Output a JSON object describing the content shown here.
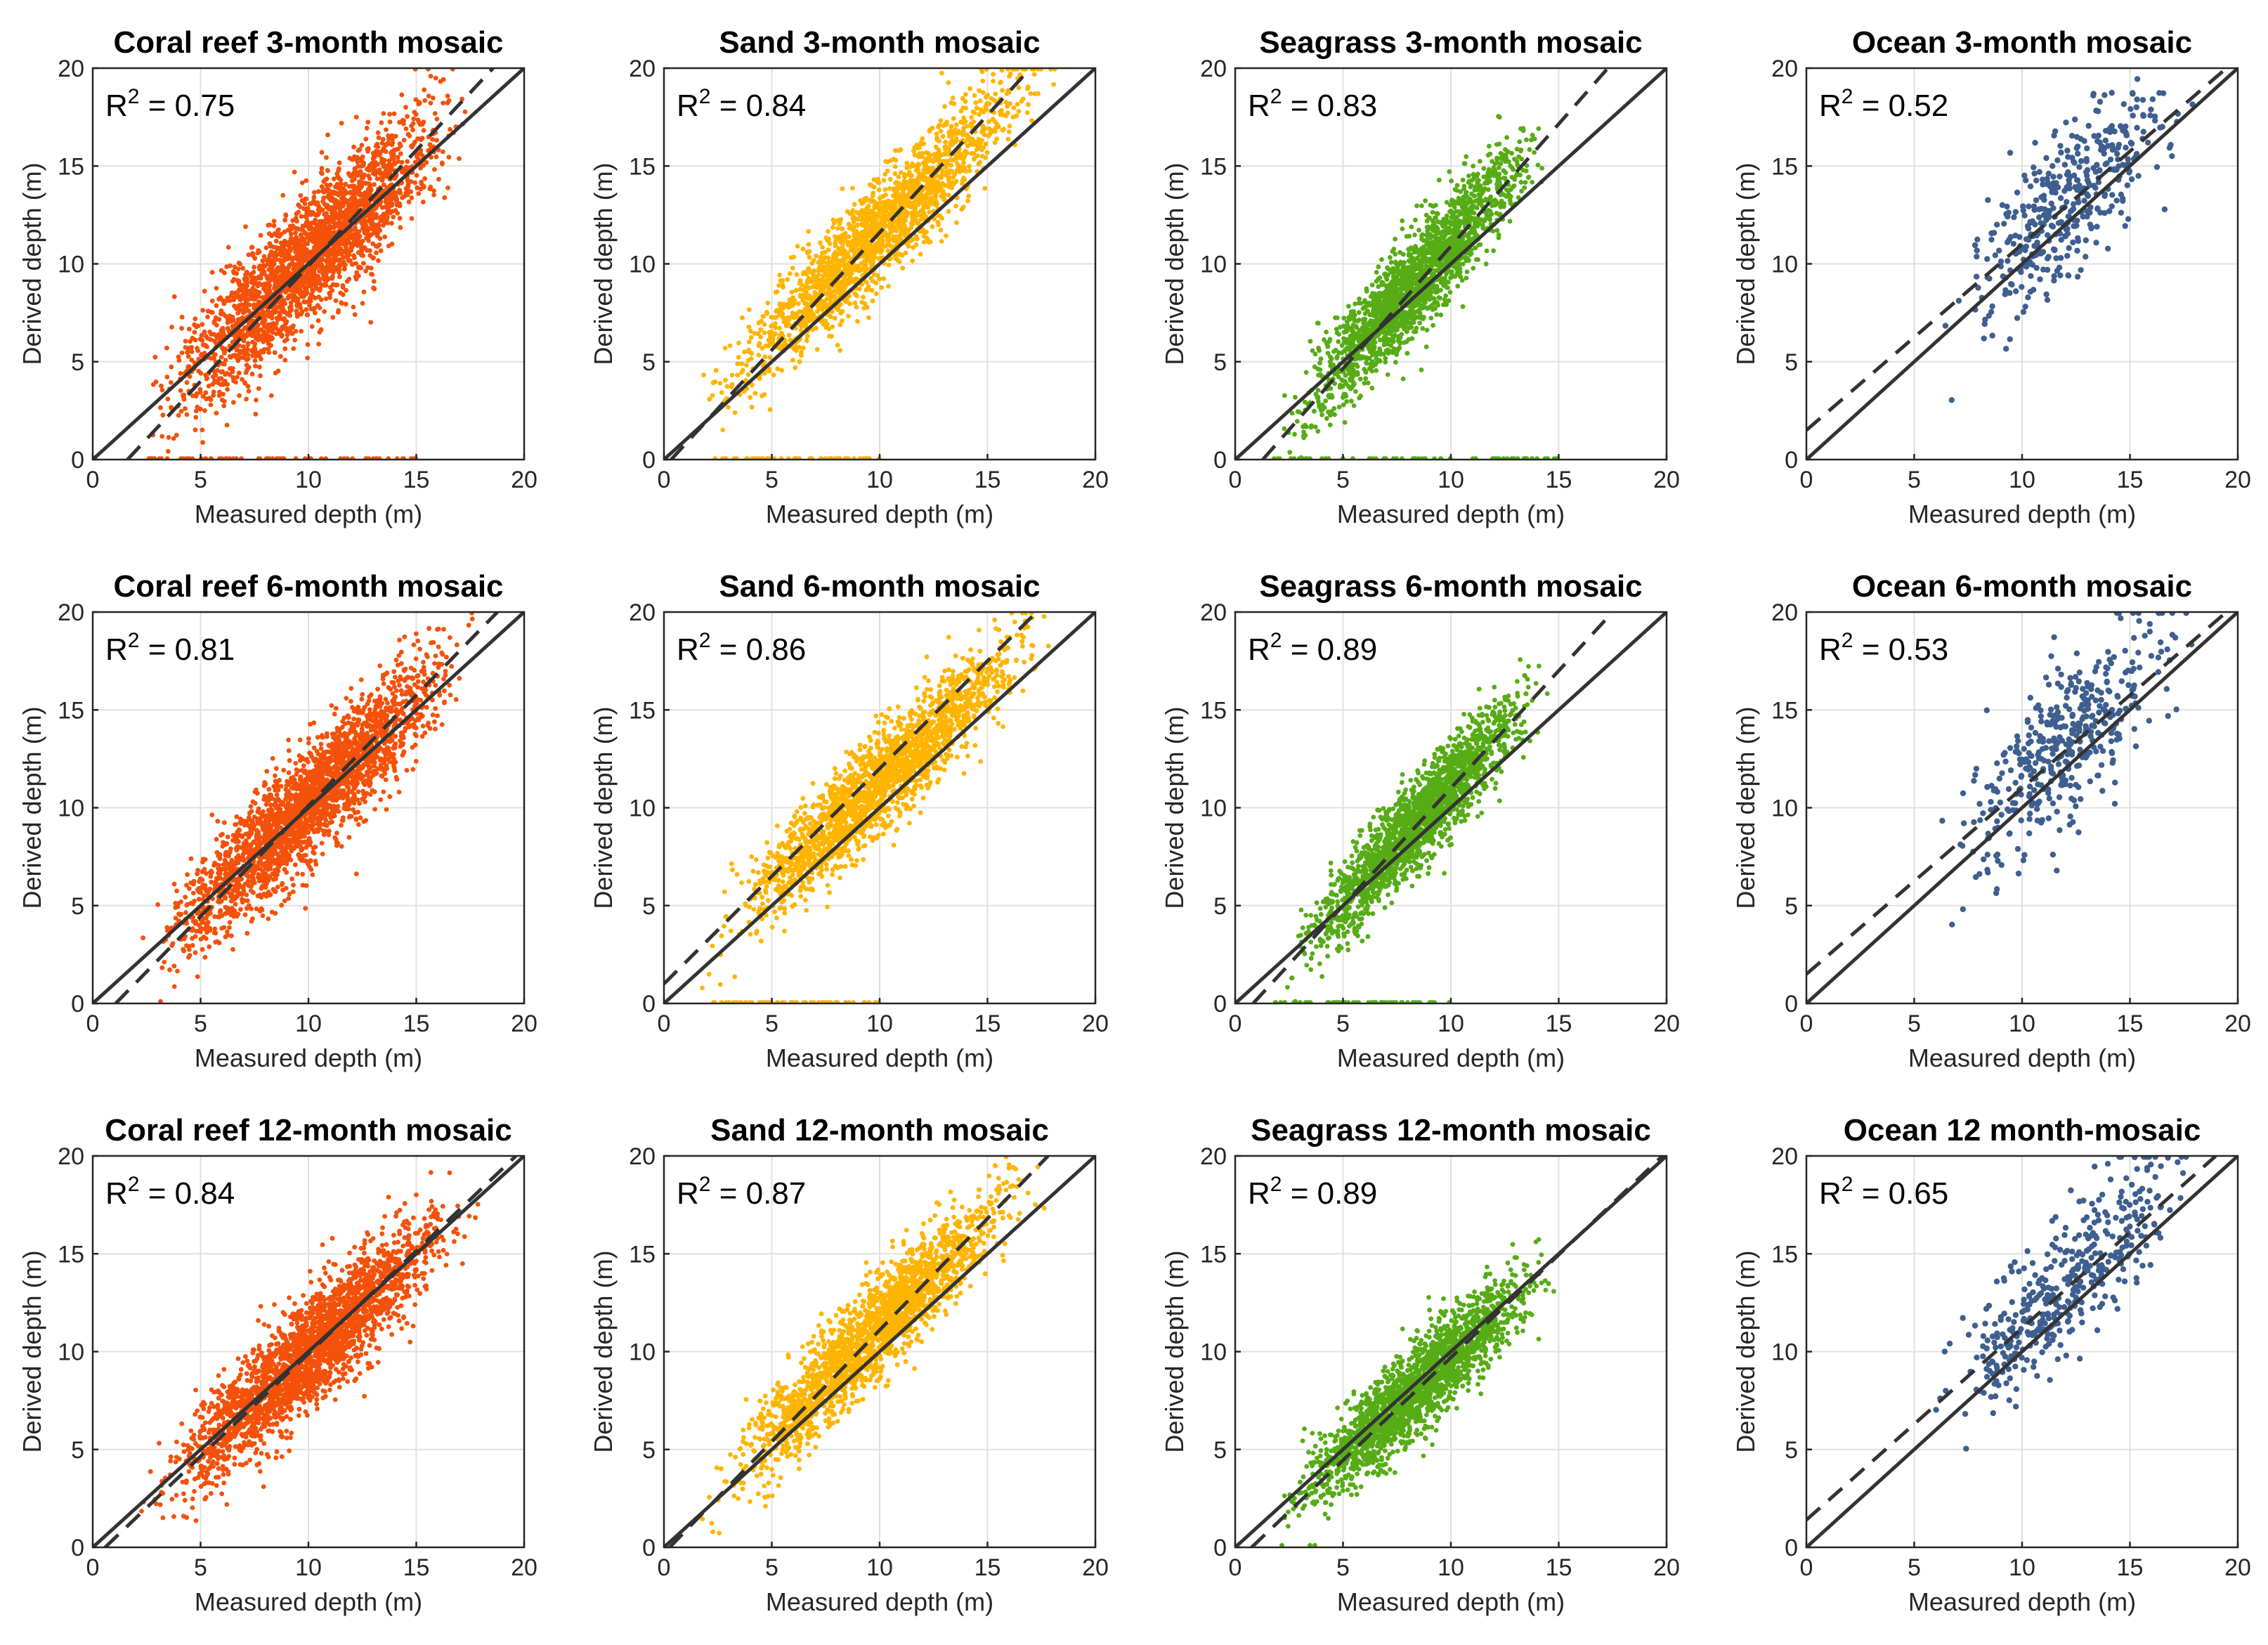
{
  "figure": {
    "xlabel": "Measured depth (m)",
    "ylabel": "Derived depth (m)"
  },
  "chart_data": [
    {
      "type": "scatter",
      "title": "Coral reef 3-month mosaic",
      "xlabel": "Measured depth (m)",
      "ylabel": "Derived depth (m)",
      "xlim": [
        0,
        20
      ],
      "ylim": [
        0,
        20
      ],
      "xticks": [
        0,
        5,
        10,
        15,
        20
      ],
      "yticks": [
        0,
        5,
        10,
        15,
        20
      ],
      "grid": true,
      "r2_prefix": "R",
      "r2_exp": "2",
      "r2_value": "0.75",
      "color": "#f4510b",
      "one_to_one": true,
      "fit_line": {
        "slope": 1.18,
        "intercept": -1.9
      },
      "cloud": {
        "n": 2600,
        "xmin": 2,
        "xmax": 18,
        "a": 1.05,
        "b": -0.3,
        "spread": 1.6,
        "zero_band": [
          2.5,
          15
        ]
      }
    },
    {
      "type": "scatter",
      "title": "Sand 3-month mosaic",
      "xlabel": "Measured depth (m)",
      "ylabel": "Derived depth (m)",
      "xlim": [
        0,
        20
      ],
      "ylim": [
        0,
        20
      ],
      "xticks": [
        0,
        5,
        10,
        15,
        20
      ],
      "yticks": [
        0,
        5,
        10,
        15,
        20
      ],
      "grid": true,
      "r2_prefix": "R",
      "r2_exp": "2",
      "r2_value": "0.84",
      "color": "#ffb400",
      "one_to_one": true,
      "fit_line": {
        "slope": 1.2,
        "intercept": -0.4
      },
      "cloud": {
        "n": 2000,
        "xmin": 1.3,
        "xmax": 18.5,
        "a": 1.1,
        "b": 0.7,
        "spread": 1.3,
        "zero_band": [
          2,
          10
        ]
      }
    },
    {
      "type": "scatter",
      "title": "Seagrass 3-month mosaic",
      "xlabel": "Measured depth (m)",
      "ylabel": "Derived depth (m)",
      "xlim": [
        0,
        20
      ],
      "ylim": [
        0,
        20
      ],
      "xticks": [
        0,
        5,
        10,
        15,
        20
      ],
      "yticks": [
        0,
        5,
        10,
        15,
        20
      ],
      "grid": true,
      "r2_prefix": "R",
      "r2_exp": "2",
      "r2_value": "0.83",
      "color": "#57ac16",
      "one_to_one": true,
      "fit_line": {
        "slope": 1.25,
        "intercept": -1.6
      },
      "cloud": {
        "n": 2000,
        "xmin": 1.8,
        "xmax": 15,
        "a": 1.25,
        "b": -1.4,
        "spread": 1.3,
        "zero_band": [
          1.8,
          15
        ]
      }
    },
    {
      "type": "scatter",
      "title": "Ocean 3-month mosaic",
      "xlabel": "Measured depth (m)",
      "ylabel": "Derived depth (m)",
      "xlim": [
        0,
        20
      ],
      "ylim": [
        0,
        20
      ],
      "xticks": [
        0,
        5,
        10,
        15,
        20
      ],
      "yticks": [
        0,
        5,
        10,
        15,
        20
      ],
      "grid": true,
      "r2_prefix": "R",
      "r2_exp": "2",
      "r2_value": "0.52",
      "color": "#3e5f8f",
      "one_to_one": true,
      "fit_line": {
        "slope": 0.95,
        "intercept": 1.5
      },
      "cloud": {
        "n": 420,
        "xmin": 5.5,
        "xmax": 18.5,
        "a": 1.0,
        "b": 1.0,
        "spread": 1.9,
        "zero_band": null
      }
    },
    {
      "type": "scatter",
      "title": "Coral reef 6-month mosaic",
      "xlabel": "Measured depth (m)",
      "ylabel": "Derived depth (m)",
      "xlim": [
        0,
        20
      ],
      "ylim": [
        0,
        20
      ],
      "xticks": [
        0,
        5,
        10,
        15,
        20
      ],
      "yticks": [
        0,
        5,
        10,
        15,
        20
      ],
      "grid": true,
      "r2_prefix": "R",
      "r2_exp": "2",
      "r2_value": "0.81",
      "color": "#f4510b",
      "one_to_one": true,
      "fit_line": {
        "slope": 1.13,
        "intercept": -1.2
      },
      "cloud": {
        "n": 2600,
        "xmin": 2,
        "xmax": 18,
        "a": 1.05,
        "b": -0.3,
        "spread": 1.4,
        "zero_band": null
      }
    },
    {
      "type": "scatter",
      "title": "Sand 6-month mosaic",
      "xlabel": "Measured depth (m)",
      "ylabel": "Derived depth (m)",
      "xlim": [
        0,
        20
      ],
      "ylim": [
        0,
        20
      ],
      "xticks": [
        0,
        5,
        10,
        15,
        20
      ],
      "yticks": [
        0,
        5,
        10,
        15,
        20
      ],
      "grid": true,
      "r2_prefix": "R",
      "r2_exp": "2",
      "r2_value": "0.86",
      "color": "#ffb400",
      "one_to_one": true,
      "fit_line": {
        "slope": 1.1,
        "intercept": 1.0
      },
      "cloud": {
        "n": 2000,
        "xmin": 1.3,
        "xmax": 18.5,
        "a": 1.05,
        "b": 0.8,
        "spread": 1.2,
        "zero_band": [
          2,
          10
        ]
      }
    },
    {
      "type": "scatter",
      "title": "Seagrass 6-month mosaic",
      "xlabel": "Measured depth (m)",
      "ylabel": "Derived depth (m)",
      "xlim": [
        0,
        20
      ],
      "ylim": [
        0,
        20
      ],
      "xticks": [
        0,
        5,
        10,
        15,
        20
      ],
      "yticks": [
        0,
        5,
        10,
        15,
        20
      ],
      "grid": true,
      "r2_prefix": "R",
      "r2_exp": "2",
      "r2_value": "0.89",
      "color": "#57ac16",
      "one_to_one": true,
      "fit_line": {
        "slope": 1.2,
        "intercept": -1.0
      },
      "cloud": {
        "n": 2000,
        "xmin": 1.8,
        "xmax": 15,
        "a": 1.2,
        "b": -0.9,
        "spread": 1.1,
        "zero_band": [
          1.8,
          10
        ]
      }
    },
    {
      "type": "scatter",
      "title": "Ocean 6-month mosaic",
      "xlabel": "Measured depth (m)",
      "ylabel": "Derived depth (m)",
      "xlim": [
        0,
        20
      ],
      "ylim": [
        0,
        20
      ],
      "xticks": [
        0,
        5,
        10,
        15,
        20
      ],
      "yticks": [
        0,
        5,
        10,
        15,
        20
      ],
      "grid": true,
      "r2_prefix": "R",
      "r2_exp": "2",
      "r2_value": "0.53",
      "color": "#3e5f8f",
      "one_to_one": true,
      "fit_line": {
        "slope": 0.95,
        "intercept": 1.5
      },
      "cloud": {
        "n": 420,
        "xmin": 5.5,
        "xmax": 18.5,
        "a": 1.0,
        "b": 1.0,
        "spread": 1.9,
        "zero_band": null
      }
    },
    {
      "type": "scatter",
      "title": "Coral reef 12-month mosaic",
      "xlabel": "Measured depth (m)",
      "ylabel": "Derived depth (m)",
      "xlim": [
        0,
        20
      ],
      "ylim": [
        0,
        20
      ],
      "xticks": [
        0,
        5,
        10,
        15,
        20
      ],
      "yticks": [
        0,
        5,
        10,
        15,
        20
      ],
      "grid": true,
      "r2_prefix": "R",
      "r2_exp": "2",
      "r2_value": "0.84",
      "color": "#f4510b",
      "one_to_one": true,
      "fit_line": {
        "slope": 1.05,
        "intercept": -0.6
      },
      "cloud": {
        "n": 2600,
        "xmin": 2,
        "xmax": 18,
        "a": 1.0,
        "b": -0.1,
        "spread": 1.3,
        "zero_band": null
      }
    },
    {
      "type": "scatter",
      "title": "Sand 12-month mosaic",
      "xlabel": "Measured depth (m)",
      "ylabel": "Derived depth (m)",
      "xlim": [
        0,
        20
      ],
      "ylim": [
        0,
        20
      ],
      "xticks": [
        0,
        5,
        10,
        15,
        20
      ],
      "yticks": [
        0,
        5,
        10,
        15,
        20
      ],
      "grid": true,
      "r2_prefix": "R",
      "r2_exp": "2",
      "r2_value": "0.87",
      "color": "#ffb400",
      "one_to_one": true,
      "fit_line": {
        "slope": 1.14,
        "intercept": -0.3
      },
      "cloud": {
        "n": 2000,
        "xmin": 1.3,
        "xmax": 18,
        "a": 1.1,
        "b": 0.3,
        "spread": 1.2,
        "zero_band": null
      }
    },
    {
      "type": "scatter",
      "title": "Seagrass 12-month mosaic",
      "xlabel": "Measured depth (m)",
      "ylabel": "Derived depth (m)",
      "xlim": [
        0,
        20
      ],
      "ylim": [
        0,
        20
      ],
      "xticks": [
        0,
        5,
        10,
        15,
        20
      ],
      "yticks": [
        0,
        5,
        10,
        15,
        20
      ],
      "grid": true,
      "r2_prefix": "R",
      "r2_exp": "2",
      "r2_value": "0.89",
      "color": "#57ac16",
      "one_to_one": true,
      "fit_line": {
        "slope": 1.05,
        "intercept": -0.8
      },
      "cloud": {
        "n": 2000,
        "xmin": 1.5,
        "xmax": 15.5,
        "a": 1.0,
        "b": -0.3,
        "spread": 1.1,
        "zero_band": null
      }
    },
    {
      "type": "scatter",
      "title": "Ocean 12 month-mosaic",
      "xlabel": "Measured depth (m)",
      "ylabel": "Derived depth (m)",
      "xlim": [
        0,
        20
      ],
      "ylim": [
        0,
        20
      ],
      "xticks": [
        0,
        5,
        10,
        15,
        20
      ],
      "yticks": [
        0,
        5,
        10,
        15,
        20
      ],
      "grid": true,
      "r2_prefix": "R",
      "r2_exp": "2",
      "r2_value": "0.65",
      "color": "#3e5f8f",
      "one_to_one": true,
      "fit_line": {
        "slope": 0.98,
        "intercept": 1.4
      },
      "cloud": {
        "n": 420,
        "xmin": 5.5,
        "xmax": 18.8,
        "a": 1.05,
        "b": 0.8,
        "spread": 1.6,
        "zero_band": null
      }
    }
  ]
}
